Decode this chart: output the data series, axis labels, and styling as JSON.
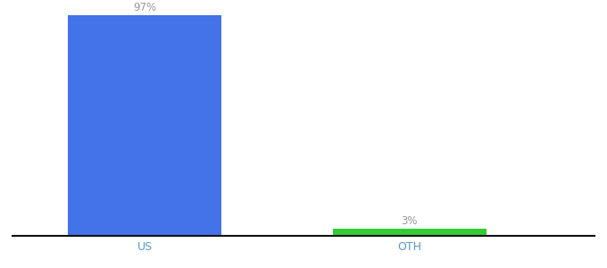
{
  "categories": [
    "US",
    "OTH"
  ],
  "values": [
    97,
    3
  ],
  "bar_colors": [
    "#4472e8",
    "#33cc33"
  ],
  "label_texts": [
    "97%",
    "3%"
  ],
  "background_color": "#ffffff",
  "axis_line_color": "#111111",
  "label_color": "#999999",
  "tick_label_color": "#5599cc",
  "ylim": [
    0,
    100
  ]
}
